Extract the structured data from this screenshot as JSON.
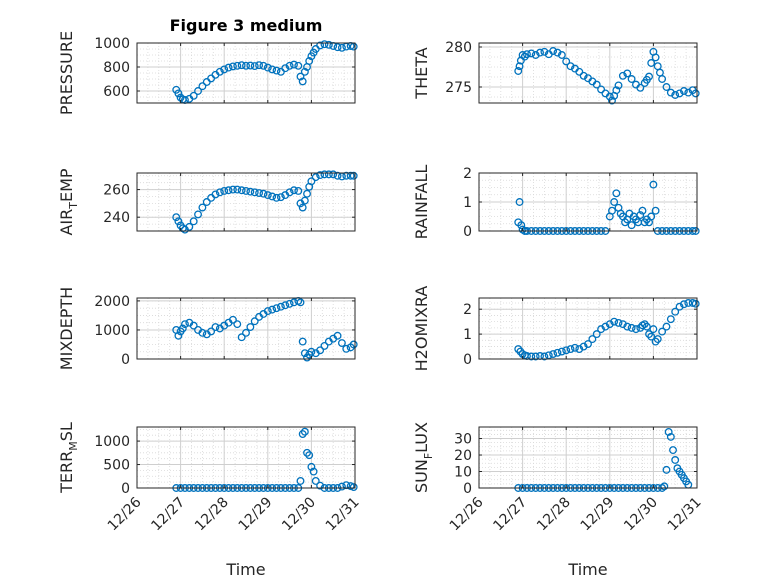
{
  "figure": {
    "title": "Figure 3 medium",
    "xlabel": "Time",
    "x_ticks": [
      "12/26",
      "12/27",
      "12/28",
      "12/29",
      "12/30",
      "12/31"
    ],
    "marker_color": "#0072BD"
  },
  "chart_data": [
    {
      "type": "scatter",
      "ylabel_main": "PRESSURE",
      "ylabel_sub": "",
      "ylabel_tail": "",
      "ylim": [
        500,
        1000
      ],
      "yticks": [
        600,
        800,
        1000
      ],
      "xlim": [
        0,
        5
      ],
      "series": [
        {
          "x": [
            0.9,
            0.95,
            1.0,
            1.05,
            1.1,
            1.2,
            1.3,
            1.4,
            1.5,
            1.6,
            1.7,
            1.8,
            1.9,
            2.0,
            2.1,
            2.2,
            2.3,
            2.4,
            2.5,
            2.6,
            2.7,
            2.8,
            2.9,
            3.0,
            3.1,
            3.2,
            3.3,
            3.4,
            3.5,
            3.6,
            3.7,
            3.75,
            3.8,
            3.85,
            3.9,
            3.95,
            4.0,
            4.05,
            4.1,
            4.2,
            4.3,
            4.4,
            4.5,
            4.6,
            4.7,
            4.8,
            4.9,
            4.97
          ],
          "y": [
            610,
            580,
            545,
            530,
            525,
            535,
            560,
            600,
            640,
            675,
            705,
            735,
            760,
            780,
            795,
            805,
            810,
            815,
            810,
            812,
            808,
            815,
            810,
            795,
            780,
            770,
            760,
            790,
            810,
            820,
            810,
            720,
            680,
            760,
            800,
            850,
            890,
            920,
            950,
            980,
            990,
            985,
            975,
            965,
            960,
            970,
            975,
            970
          ]
        }
      ]
    },
    {
      "type": "scatter",
      "ylabel_main": "THETA",
      "ylabel_sub": "",
      "ylabel_tail": "",
      "ylim": [
        273,
        280.5
      ],
      "yticks": [
        275,
        280
      ],
      "xlim": [
        0,
        5
      ],
      "series": [
        {
          "x": [
            0.9,
            0.93,
            0.96,
            1.0,
            1.05,
            1.1,
            1.2,
            1.3,
            1.4,
            1.5,
            1.6,
            1.7,
            1.8,
            1.9,
            2.0,
            2.1,
            2.2,
            2.3,
            2.4,
            2.5,
            2.6,
            2.7,
            2.8,
            2.9,
            3.0,
            3.05,
            3.1,
            3.15,
            3.2,
            3.3,
            3.4,
            3.5,
            3.6,
            3.7,
            3.8,
            3.85,
            3.9,
            3.95,
            4.0,
            4.05,
            4.1,
            4.15,
            4.2,
            4.3,
            4.4,
            4.5,
            4.6,
            4.7,
            4.8,
            4.9,
            4.97
          ],
          "y": [
            277.0,
            277.6,
            278.3,
            279.0,
            278.8,
            279.1,
            279.2,
            279.0,
            279.3,
            279.4,
            279.1,
            279.5,
            279.3,
            279.0,
            278.2,
            277.6,
            277.3,
            276.9,
            276.4,
            276.1,
            275.7,
            275.3,
            274.7,
            274.2,
            273.8,
            273.3,
            273.9,
            274.6,
            275.2,
            276.4,
            276.7,
            276.0,
            275.3,
            274.9,
            275.5,
            275.9,
            276.3,
            278.0,
            279.4,
            278.7,
            277.6,
            276.8,
            276.0,
            275.0,
            274.3,
            274.0,
            274.2,
            274.5,
            274.3,
            274.6,
            274.2
          ]
        }
      ]
    },
    {
      "type": "scatter",
      "ylabel_main": "AIR",
      "ylabel_sub": "T",
      "ylabel_tail": "EMP",
      "ylim": [
        230,
        272
      ],
      "yticks": [
        240,
        260
      ],
      "xlim": [
        0,
        5
      ],
      "series": [
        {
          "x": [
            0.9,
            0.95,
            1.0,
            1.05,
            1.1,
            1.2,
            1.3,
            1.4,
            1.5,
            1.6,
            1.7,
            1.8,
            1.9,
            2.0,
            2.1,
            2.2,
            2.3,
            2.4,
            2.5,
            2.6,
            2.7,
            2.8,
            2.9,
            3.0,
            3.1,
            3.2,
            3.3,
            3.4,
            3.5,
            3.6,
            3.7,
            3.75,
            3.8,
            3.85,
            3.9,
            3.95,
            4.0,
            4.1,
            4.2,
            4.3,
            4.4,
            4.5,
            4.6,
            4.7,
            4.8,
            4.9,
            4.97
          ],
          "y": [
            240,
            237,
            234,
            232,
            231,
            233,
            237,
            242,
            247,
            251,
            254,
            256.5,
            258,
            259,
            259.5,
            260,
            260,
            259.5,
            259,
            258.5,
            258,
            257.5,
            257,
            256,
            255,
            254,
            254.5,
            256,
            258,
            259.5,
            259,
            250,
            247,
            252,
            257,
            262,
            266,
            269,
            270.5,
            271,
            271,
            271,
            270,
            269.5,
            270,
            270,
            270
          ]
        }
      ]
    },
    {
      "type": "scatter",
      "ylabel_main": "RAINFALL",
      "ylabel_sub": "",
      "ylabel_tail": "",
      "ylim": [
        0,
        2
      ],
      "yticks": [
        0,
        1,
        2
      ],
      "xlim": [
        0,
        5
      ],
      "series": [
        {
          "x": [
            0.9,
            0.93,
            0.97,
            1.0,
            1.05,
            1.1,
            1.2,
            1.3,
            1.4,
            1.5,
            1.6,
            1.7,
            1.8,
            1.9,
            2.0,
            2.1,
            2.2,
            2.3,
            2.4,
            2.5,
            2.6,
            2.7,
            2.8,
            2.9,
            3.0,
            3.05,
            3.1,
            3.15,
            3.2,
            3.25,
            3.3,
            3.35,
            3.4,
            3.45,
            3.5,
            3.55,
            3.6,
            3.65,
            3.7,
            3.75,
            3.8,
            3.85,
            3.9,
            3.95,
            4.0,
            4.05,
            4.1,
            4.2,
            4.3,
            4.4,
            4.5,
            4.6,
            4.7,
            4.8,
            4.9,
            4.97
          ],
          "y": [
            0.3,
            1.0,
            0.2,
            0.05,
            0,
            0,
            0,
            0,
            0,
            0,
            0,
            0,
            0,
            0,
            0,
            0,
            0,
            0,
            0,
            0,
            0,
            0,
            0,
            0,
            0.5,
            0.7,
            1.0,
            1.3,
            0.8,
            0.6,
            0.5,
            0.3,
            0.4,
            0.6,
            0.2,
            0.5,
            0.4,
            0.3,
            0.55,
            0.7,
            0.3,
            0.4,
            0.3,
            0.5,
            1.6,
            0.7,
            0,
            0,
            0,
            0,
            0,
            0,
            0,
            0,
            0,
            0
          ]
        }
      ]
    },
    {
      "type": "scatter",
      "ylabel_main": "MIXDEPTH",
      "ylabel_sub": "",
      "ylabel_tail": "",
      "ylim": [
        0,
        2100
      ],
      "yticks": [
        0,
        1000,
        2000
      ],
      "xlim": [
        0,
        5
      ],
      "series": [
        {
          "x": [
            0.9,
            0.95,
            1.0,
            1.05,
            1.1,
            1.2,
            1.3,
            1.4,
            1.5,
            1.6,
            1.7,
            1.8,
            1.9,
            2.0,
            2.1,
            2.2,
            2.3,
            2.4,
            2.5,
            2.6,
            2.7,
            2.8,
            2.9,
            3.0,
            3.1,
            3.2,
            3.3,
            3.4,
            3.5,
            3.6,
            3.7,
            3.75,
            3.8,
            3.85,
            3.9,
            3.95,
            4.0,
            4.1,
            4.2,
            4.3,
            4.4,
            4.5,
            4.6,
            4.7,
            4.8,
            4.9,
            4.97
          ],
          "y": [
            1000,
            800,
            950,
            1050,
            1200,
            1250,
            1150,
            1000,
            900,
            850,
            950,
            1100,
            1050,
            1150,
            1250,
            1350,
            1200,
            750,
            900,
            1100,
            1300,
            1450,
            1550,
            1650,
            1700,
            1750,
            1800,
            1850,
            1900,
            1950,
            2000,
            1950,
            600,
            200,
            50,
            150,
            250,
            200,
            300,
            450,
            600,
            700,
            800,
            550,
            350,
            400,
            500
          ]
        }
      ]
    },
    {
      "type": "scatter",
      "ylabel_main": "H2OMIXRA",
      "ylabel_sub": "",
      "ylabel_tail": "",
      "ylim": [
        0,
        2.45
      ],
      "yticks": [
        0,
        1,
        2
      ],
      "xlim": [
        0,
        5
      ],
      "series": [
        {
          "x": [
            0.9,
            0.95,
            1.0,
            1.05,
            1.1,
            1.2,
            1.3,
            1.4,
            1.5,
            1.6,
            1.7,
            1.8,
            1.9,
            2.0,
            2.1,
            2.2,
            2.3,
            2.4,
            2.5,
            2.6,
            2.7,
            2.8,
            2.9,
            3.0,
            3.1,
            3.2,
            3.3,
            3.4,
            3.5,
            3.6,
            3.7,
            3.75,
            3.8,
            3.85,
            3.9,
            3.95,
            4.0,
            4.05,
            4.1,
            4.2,
            4.3,
            4.4,
            4.5,
            4.6,
            4.7,
            4.8,
            4.9,
            4.97
          ],
          "y": [
            0.4,
            0.3,
            0.2,
            0.15,
            0.12,
            0.1,
            0.1,
            0.12,
            0.1,
            0.15,
            0.2,
            0.25,
            0.3,
            0.35,
            0.4,
            0.45,
            0.4,
            0.5,
            0.6,
            0.8,
            1.0,
            1.2,
            1.3,
            1.4,
            1.5,
            1.45,
            1.4,
            1.3,
            1.25,
            1.2,
            1.25,
            1.35,
            1.4,
            1.3,
            1.0,
            0.9,
            1.2,
            0.7,
            0.8,
            1.1,
            1.3,
            1.6,
            1.9,
            2.1,
            2.2,
            2.25,
            2.25,
            2.22
          ]
        }
      ]
    },
    {
      "type": "scatter",
      "ylabel_main": "TERR",
      "ylabel_sub": "M",
      "ylabel_tail": "SL",
      "ylim": [
        0,
        1300
      ],
      "yticks": [
        0,
        500,
        1000
      ],
      "xlim": [
        0,
        5
      ],
      "series": [
        {
          "x": [
            0.9,
            1.0,
            1.1,
            1.2,
            1.3,
            1.4,
            1.5,
            1.6,
            1.7,
            1.8,
            1.9,
            2.0,
            2.1,
            2.2,
            2.3,
            2.4,
            2.5,
            2.6,
            2.7,
            2.8,
            2.9,
            3.0,
            3.1,
            3.2,
            3.3,
            3.4,
            3.5,
            3.6,
            3.7,
            3.75,
            3.8,
            3.85,
            3.9,
            3.95,
            4.0,
            4.05,
            4.1,
            4.2,
            4.3,
            4.4,
            4.5,
            4.6,
            4.7,
            4.8,
            4.9,
            4.97
          ],
          "y": [
            0,
            0,
            0,
            0,
            0,
            0,
            0,
            0,
            0,
            0,
            0,
            0,
            0,
            0,
            0,
            0,
            0,
            0,
            0,
            0,
            0,
            0,
            0,
            0,
            0,
            0,
            0,
            0,
            0,
            150,
            1150,
            1200,
            750,
            700,
            450,
            350,
            150,
            50,
            0,
            0,
            0,
            0,
            30,
            60,
            40,
            20
          ]
        }
      ]
    },
    {
      "type": "scatter",
      "ylabel_main": "SUN",
      "ylabel_sub": "F",
      "ylabel_tail": "LUX",
      "ylim": [
        0,
        37
      ],
      "yticks": [
        0,
        10,
        20,
        30
      ],
      "xlim": [
        0,
        5
      ],
      "series": [
        {
          "x": [
            0.9,
            1.0,
            1.1,
            1.2,
            1.3,
            1.4,
            1.5,
            1.6,
            1.7,
            1.8,
            1.9,
            2.0,
            2.1,
            2.2,
            2.3,
            2.4,
            2.5,
            2.6,
            2.7,
            2.8,
            2.9,
            3.0,
            3.1,
            3.2,
            3.3,
            3.4,
            3.5,
            3.6,
            3.7,
            3.8,
            3.9,
            4.0,
            4.1,
            4.2,
            4.25,
            4.3,
            4.35,
            4.4,
            4.45,
            4.5,
            4.55,
            4.6,
            4.65,
            4.7,
            4.75,
            4.8
          ],
          "y": [
            0,
            0,
            0,
            0,
            0,
            0,
            0,
            0,
            0,
            0,
            0,
            0,
            0,
            0,
            0,
            0,
            0,
            0,
            0,
            0,
            0,
            0,
            0,
            0,
            0,
            0,
            0,
            0,
            0,
            0,
            0,
            0,
            0,
            0,
            1,
            11,
            34,
            31,
            23,
            17,
            12,
            10,
            8,
            6,
            4,
            2
          ]
        }
      ]
    }
  ]
}
